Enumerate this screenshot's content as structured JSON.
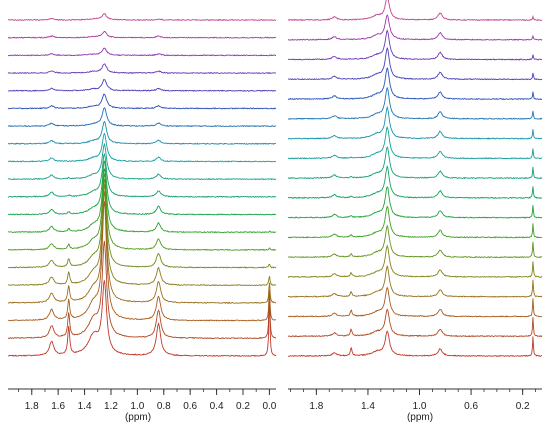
{
  "figure": {
    "panels": 2
  },
  "chart_data": [
    {
      "type": "line",
      "title": "",
      "xlabel": "(ppm)",
      "ylabel": "",
      "x_reversed": true,
      "xlim": [
        1.98,
        -0.05
      ],
      "tick_labels": [
        "1.8",
        "1.6",
        "1.4",
        "1.2",
        "1.0",
        "0.8",
        "0.6",
        "0.4",
        "0.2",
        "0.0"
      ],
      "tick_values": [
        1.8,
        1.6,
        1.4,
        1.2,
        1.0,
        0.8,
        0.6,
        0.4,
        0.2,
        0.0
      ],
      "grid": false,
      "legend": "none",
      "stack_count": 20,
      "stack_order": "bottom-to-top",
      "color_sequence": [
        "#c0392b",
        "#b14a25",
        "#a85d20",
        "#9a6e1c",
        "#8a7e1a",
        "#6e8c1c",
        "#4f9a20",
        "#2ea42a",
        "#1aa34a",
        "#14a06a",
        "#14a088",
        "#16a0a0",
        "#1a8fae",
        "#2170b6",
        "#2b4fb8",
        "#4a3fb8",
        "#6a38b4",
        "#8a36ae",
        "#a83aa2",
        "#c24494"
      ],
      "peaks": [
        {
          "ppm": 1.65,
          "width": 0.02,
          "heights": [
            14,
            12,
            10.5,
            9,
            8,
            7,
            6,
            5.5,
            5,
            4.5,
            4,
            3.5,
            3,
            2.8,
            2.5,
            2.2,
            2,
            1.8,
            1.6,
            1.4
          ]
        },
        {
          "ppm": 1.52,
          "width": 0.009,
          "heights": [
            28,
            24,
            20,
            16,
            12,
            8,
            5,
            3,
            2,
            1.5,
            1,
            0,
            0,
            0,
            0,
            0,
            0,
            0,
            0,
            0
          ]
        },
        {
          "ppm": 1.33,
          "width": 0.05,
          "heights": [
            20,
            18,
            16,
            13,
            11,
            9,
            8,
            6,
            5,
            4,
            3.5,
            3,
            2.5,
            2,
            2,
            1.5,
            1.5,
            1,
            1,
            1
          ]
        },
        {
          "ppm": 1.25,
          "width": 0.02,
          "heights": [
            70,
            92,
            115,
            108,
            98,
            86,
            74,
            62,
            52,
            42,
            34,
            27,
            22,
            18,
            14,
            11,
            9,
            7,
            6,
            6
          ]
        },
        {
          "ppm": 0.84,
          "width": 0.02,
          "heights": [
            32,
            28,
            24,
            21,
            17,
            14,
            11,
            9,
            8,
            6,
            5,
            4,
            3.5,
            3,
            2.5,
            2,
            2,
            1.5,
            1.5,
            1
          ]
        },
        {
          "ppm": 0.0,
          "width": 0.005,
          "heights": [
            60,
            48,
            35,
            22,
            10,
            4,
            2,
            1,
            0,
            0,
            0,
            0,
            0,
            0,
            0,
            0,
            0,
            0,
            0,
            0
          ]
        }
      ]
    },
    {
      "type": "line",
      "title": "",
      "xlabel": "(ppm)",
      "ylabel": "",
      "x_reversed": true,
      "xlim": [
        2.02,
        0.05
      ],
      "tick_labels": [
        "1.8",
        "1.4",
        "1.0",
        "0.6",
        "0.2"
      ],
      "tick_values": [
        1.8,
        1.4,
        1.0,
        0.6,
        0.2
      ],
      "grid": false,
      "legend": "none",
      "stack_count": 18,
      "stack_order": "bottom-to-top",
      "color_sequence": [
        "#c0392b",
        "#b14a25",
        "#a65c20",
        "#98701c",
        "#82841a",
        "#609420",
        "#3ea226",
        "#20a43a",
        "#16a25e",
        "#14a07e",
        "#14a09a",
        "#1894ac",
        "#1f76b6",
        "#2a54b8",
        "#4840b8",
        "#6c38b4",
        "#9a38aa",
        "#c24494"
      ],
      "peaks": [
        {
          "ppm": 1.66,
          "width": 0.02,
          "heights": [
            3,
            3,
            3,
            3,
            3,
            3,
            3,
            3,
            3,
            3,
            3,
            3,
            3,
            3,
            3,
            3,
            3,
            3
          ]
        },
        {
          "ppm": 1.53,
          "width": 0.008,
          "heights": [
            8,
            7,
            6,
            5,
            4,
            3,
            2.5,
            2,
            1.5,
            1,
            0.5,
            0,
            0,
            0,
            0,
            0,
            0,
            0
          ]
        },
        {
          "ppm": 1.33,
          "width": 0.05,
          "heights": [
            4,
            4,
            4,
            4,
            4,
            4,
            4,
            4,
            4,
            4,
            4,
            4,
            4,
            4,
            4,
            4,
            4,
            4
          ]
        },
        {
          "ppm": 1.25,
          "width": 0.02,
          "heights": [
            24,
            26,
            28,
            29,
            30,
            30,
            30,
            30,
            30,
            30,
            30,
            30,
            30,
            30,
            30,
            28,
            24,
            22
          ]
        },
        {
          "ppm": 0.84,
          "width": 0.02,
          "heights": [
            7,
            7,
            7,
            7,
            7,
            7,
            7,
            7,
            7,
            7,
            7,
            7,
            7,
            7,
            7,
            7,
            7,
            7
          ]
        },
        {
          "ppm": 0.12,
          "width": 0.004,
          "heights": [
            20,
            19,
            18,
            17,
            16,
            15,
            14,
            13,
            12,
            11,
            10,
            9,
            8,
            7,
            6,
            5,
            4,
            3
          ]
        }
      ]
    }
  ]
}
